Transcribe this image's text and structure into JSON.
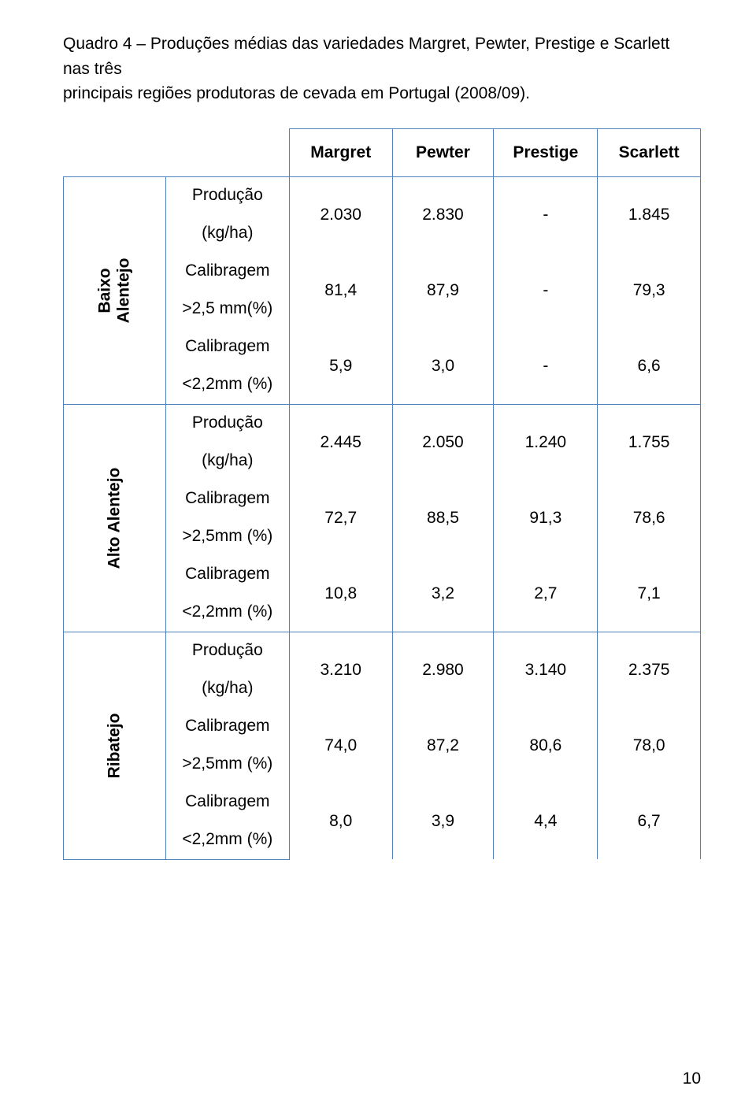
{
  "title_line1": "Quadro 4 – Produções médias das variedades Margret, Pewter, Prestige e Scarlett  nas três",
  "title_line2": "principais regiões produtoras de cevada em Portugal (2008/09).",
  "headers": {
    "c1": "Margret",
    "c2": "Pewter",
    "c3": "Prestige",
    "c4": "Scarlett"
  },
  "regions": [
    {
      "label": "Baixo\nAlentejo",
      "metrics": [
        {
          "name1": "Produção",
          "name2": "(kg/ha)",
          "v": [
            "2.030",
            "2.830",
            "-",
            "1.845"
          ]
        },
        {
          "name1": "Calibragem",
          "name2": ">2,5 mm(%)",
          "v": [
            "81,4",
            "87,9",
            "-",
            "79,3"
          ]
        },
        {
          "name1": "Calibragem",
          "name2": "<2,2mm (%)",
          "v": [
            "5,9",
            "3,0",
            "-",
            "6,6"
          ]
        }
      ]
    },
    {
      "label": "Alto Alentejo",
      "metrics": [
        {
          "name1": "Produção",
          "name2": "(kg/ha)",
          "v": [
            "2.445",
            "2.050",
            "1.240",
            "1.755"
          ]
        },
        {
          "name1": "Calibragem",
          "name2": ">2,5mm (%)",
          "v": [
            "72,7",
            "88,5",
            "91,3",
            "78,6"
          ]
        },
        {
          "name1": "Calibragem",
          "name2": "<2,2mm (%)",
          "v": [
            "10,8",
            "3,2",
            "2,7",
            "7,1"
          ]
        }
      ]
    },
    {
      "label": "Ribatejo",
      "metrics": [
        {
          "name1": "Produção",
          "name2": "(kg/ha)",
          "v": [
            "3.210",
            "2.980",
            "3.140",
            "2.375"
          ]
        },
        {
          "name1": "Calibragem",
          "name2": ">2,5mm (%)",
          "v": [
            "74,0",
            "87,2",
            "80,6",
            "78,0"
          ]
        },
        {
          "name1": "Calibragem",
          "name2": "<2,2mm (%)",
          "v": [
            "8,0",
            "3,9",
            "4,4",
            "6,7"
          ]
        }
      ]
    }
  ],
  "page_number": "10",
  "colors": {
    "border": "#4f81bc",
    "text": "#000000",
    "bg": "#ffffff"
  }
}
